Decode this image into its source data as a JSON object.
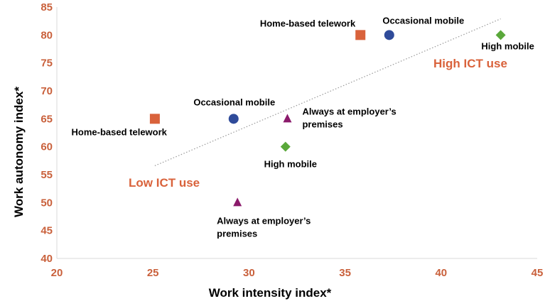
{
  "chart_data": {
    "type": "scatter",
    "xlabel": "Work intensity index*",
    "ylabel": "Work autonomy index*",
    "xlim": [
      20,
      45
    ],
    "ylim": [
      40,
      85
    ],
    "xticks": [
      20,
      25,
      30,
      35,
      40,
      45
    ],
    "yticks": [
      40,
      45,
      50,
      55,
      60,
      65,
      70,
      75,
      80,
      85
    ],
    "grid": false,
    "colors": {
      "home": "#d9623b",
      "occasional": "#2f4b9a",
      "high": "#5aa83a",
      "always": "#8b1a6b",
      "tick": "#c9603b",
      "zone": "#d9623b",
      "trend": "#999999"
    },
    "points": [
      {
        "group": "home",
        "marker": "square",
        "x": 25.1,
        "y": 65,
        "label": [
          "Home-based telework"
        ]
      },
      {
        "group": "occasional",
        "marker": "circle",
        "x": 29.2,
        "y": 65,
        "label": [
          "Occasional mobile"
        ]
      },
      {
        "group": "always",
        "marker": "triangle",
        "x": 32.0,
        "y": 65,
        "label": [
          "Always at employer’s",
          "premises"
        ]
      },
      {
        "group": "high",
        "marker": "diamond",
        "x": 31.9,
        "y": 60,
        "label": [
          "High mobile"
        ]
      },
      {
        "group": "always",
        "marker": "triangle",
        "x": 29.4,
        "y": 50,
        "label": [
          "Always at employer’s",
          "premises"
        ]
      },
      {
        "group": "home",
        "marker": "square",
        "x": 35.8,
        "y": 80,
        "label": [
          "Home-based telework"
        ]
      },
      {
        "group": "occasional",
        "marker": "circle",
        "x": 37.3,
        "y": 80,
        "label": [
          "Occasional mobile"
        ]
      },
      {
        "group": "high",
        "marker": "diamond",
        "x": 43.1,
        "y": 80,
        "label": [
          "High mobile"
        ]
      }
    ],
    "trendline": {
      "x": [
        25.1,
        43.1
      ],
      "y": [
        56.6,
        82.9
      ],
      "style": "dotted"
    },
    "annotations": [
      "Low ICT use",
      "High ICT use"
    ]
  }
}
